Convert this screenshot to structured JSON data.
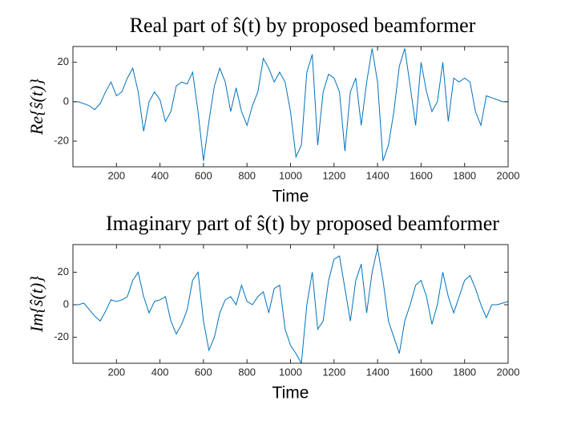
{
  "chart_data": [
    {
      "type": "line",
      "title": "Real part of ŝ(t) by proposed beamformer",
      "x_label": "Time",
      "y_label": "Re{ŝ(t)}",
      "x": [
        0,
        25,
        50,
        75,
        100,
        125,
        150,
        175,
        200,
        225,
        250,
        275,
        300,
        325,
        350,
        375,
        400,
        425,
        450,
        475,
        500,
        525,
        550,
        575,
        600,
        625,
        650,
        675,
        700,
        725,
        750,
        775,
        800,
        825,
        850,
        875,
        900,
        925,
        950,
        975,
        1000,
        1025,
        1050,
        1075,
        1100,
        1125,
        1150,
        1175,
        1200,
        1225,
        1250,
        1275,
        1300,
        1325,
        1350,
        1375,
        1400,
        1425,
        1450,
        1475,
        1500,
        1525,
        1550,
        1575,
        1600,
        1625,
        1650,
        1675,
        1700,
        1725,
        1750,
        1775,
        1800,
        1825,
        1850,
        1875,
        1900,
        1925,
        1950,
        1975,
        2000
      ],
      "series": [
        {
          "color": "#0072bd",
          "values": [
            0,
            0,
            -1,
            -2,
            -4,
            -1,
            5,
            10,
            3,
            5,
            12,
            17,
            5,
            -15,
            0,
            5,
            1,
            -10,
            -5,
            8,
            10,
            9,
            15,
            -5,
            -30,
            -10,
            8,
            17,
            10,
            -5,
            7,
            -5,
            -12,
            -2,
            5,
            22,
            17,
            10,
            15,
            10,
            -5,
            -28,
            -22,
            15,
            24,
            -22,
            5,
            14,
            12,
            5,
            -25,
            5,
            12,
            -12,
            10,
            27,
            10,
            -30,
            -22,
            -5,
            18,
            27,
            8,
            -12,
            20,
            5,
            -5,
            0,
            20,
            -10,
            12,
            10,
            12,
            10,
            -5,
            -12,
            3,
            2,
            1,
            0,
            0
          ]
        }
      ],
      "xlim": [
        0,
        2000
      ],
      "xticks": [
        200,
        400,
        600,
        800,
        1000,
        1200,
        1400,
        1600,
        1800,
        2000
      ],
      "ylim": [
        -33,
        28
      ],
      "yticks": [
        -20,
        0,
        20
      ]
    },
    {
      "type": "line",
      "title": "Imaginary part of ŝ(t) by proposed beamformer",
      "x_label": "Time",
      "y_label": "Im{ŝ(t)}",
      "x": [
        0,
        25,
        50,
        75,
        100,
        125,
        150,
        175,
        200,
        225,
        250,
        275,
        300,
        325,
        350,
        375,
        400,
        425,
        450,
        475,
        500,
        525,
        550,
        575,
        600,
        625,
        650,
        675,
        700,
        725,
        750,
        775,
        800,
        825,
        850,
        875,
        900,
        925,
        950,
        975,
        1000,
        1025,
        1050,
        1075,
        1100,
        1125,
        1150,
        1175,
        1200,
        1225,
        1250,
        1275,
        1300,
        1325,
        1350,
        1375,
        1400,
        1425,
        1450,
        1475,
        1500,
        1525,
        1550,
        1575,
        1600,
        1625,
        1650,
        1675,
        1700,
        1725,
        1750,
        1775,
        1800,
        1825,
        1850,
        1875,
        1900,
        1925,
        1950,
        1975,
        2000
      ],
      "series": [
        {
          "color": "#0072bd",
          "values": [
            0,
            0,
            1,
            -3,
            -7,
            -10,
            -4,
            3,
            2,
            3,
            5,
            15,
            20,
            5,
            -5,
            2,
            3,
            5,
            -10,
            -18,
            -12,
            -3,
            15,
            20,
            -10,
            -28,
            -20,
            -5,
            3,
            5,
            0,
            12,
            2,
            0,
            5,
            8,
            -5,
            10,
            12,
            -15,
            -25,
            -30,
            -36,
            0,
            20,
            -15,
            -10,
            15,
            28,
            30,
            10,
            -10,
            15,
            25,
            -5,
            20,
            35,
            15,
            -10,
            -20,
            -30,
            -10,
            0,
            12,
            15,
            5,
            -12,
            0,
            20,
            5,
            -5,
            5,
            15,
            18,
            10,
            0,
            -8,
            0,
            0,
            1,
            2
          ]
        }
      ],
      "xlim": [
        0,
        2000
      ],
      "xticks": [
        200,
        400,
        600,
        800,
        1000,
        1200,
        1400,
        1600,
        1800,
        2000
      ],
      "ylim": [
        -36,
        37
      ],
      "yticks": [
        -20,
        0,
        20
      ]
    }
  ]
}
